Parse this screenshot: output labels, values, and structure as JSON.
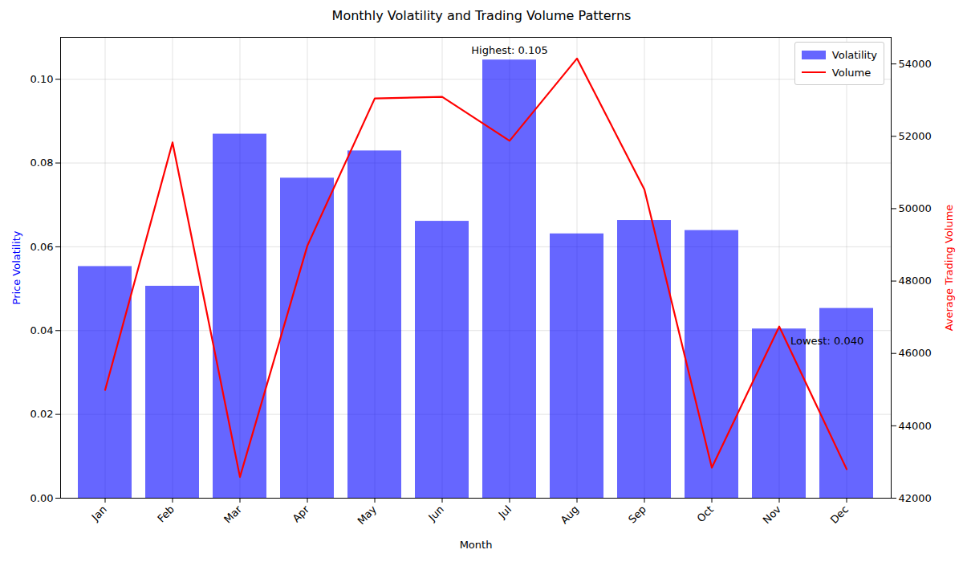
{
  "chart_data": {
    "type": "bar",
    "title": "Monthly Volatility and Trading Volume Patterns",
    "x_label": "Month",
    "y_label": "Price Volatility",
    "y2_label": "Average Trading Volume",
    "categories": [
      "Jan",
      "Feb",
      "Mar",
      "Apr",
      "May",
      "Jun",
      "Jul",
      "Aug",
      "Sep",
      "Oct",
      "Nov",
      "Dec"
    ],
    "series": [
      {
        "name": "Volatility",
        "type": "bar",
        "color": "blue",
        "values": [
          0.0553,
          0.0506,
          0.0869,
          0.0764,
          0.0829,
          0.0661,
          0.1046,
          0.0631,
          0.0663,
          0.0639,
          0.0404,
          0.0453
        ]
      },
      {
        "name": "Volume",
        "type": "line",
        "color": "red",
        "axis": "y2",
        "values": [
          44990,
          51830,
          42585,
          48975,
          53046,
          53090,
          51876,
          54150,
          50533,
          42845,
          46743,
          42801
        ]
      }
    ],
    "ylim": [
      0,
      0.11
    ],
    "yticks": [
      {
        "value": 0,
        "label": "0.00"
      },
      {
        "value": 0.02,
        "label": "0.02"
      },
      {
        "value": 0.04,
        "label": "0.04"
      },
      {
        "value": 0.06,
        "label": "0.06"
      },
      {
        "value": 0.08,
        "label": "0.08"
      },
      {
        "value": 0.1,
        "label": "0.10"
      }
    ],
    "y2lim": [
      42000,
      54735
    ],
    "y2ticks": [
      42000,
      44000,
      46000,
      48000,
      50000,
      52000,
      54000
    ],
    "annotations": [
      {
        "text": "Highest: 0.105",
        "category": "Jul"
      },
      {
        "text": "Lowest: 0.040",
        "category": "Nov"
      }
    ],
    "grid": true,
    "legend": "upper right"
  }
}
